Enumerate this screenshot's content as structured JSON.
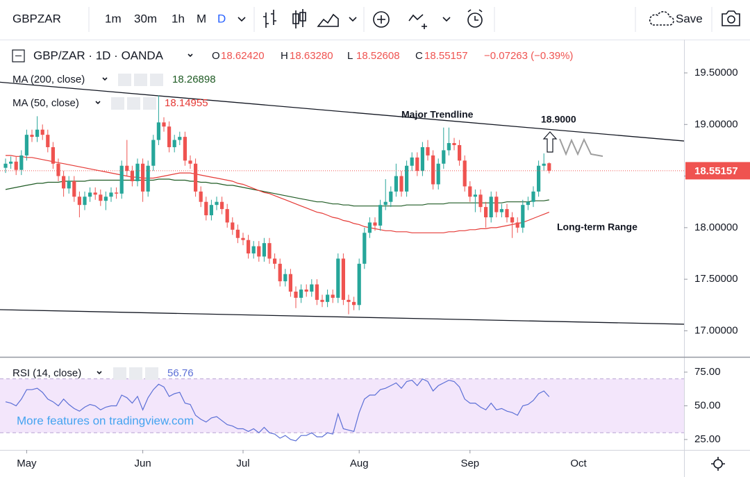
{
  "toolbar": {
    "symbol": "GBPZAR",
    "intervals": [
      "1m",
      "30m",
      "1h",
      "M",
      "D"
    ],
    "save": "Save"
  },
  "chart_data": {
    "type": "candlestick",
    "title": "GBP/ZAR · 1D · OANDA",
    "header_values": [
      {
        "label": "O",
        "text": "18.62420"
      },
      {
        "label": "H",
        "text": "18.63280"
      },
      {
        "label": "L",
        "text": "18.52608"
      },
      {
        "label": "C",
        "text": "18.55157"
      }
    ],
    "change": "−0.07263 (−0.39%)",
    "up_color": "#26a69a",
    "down_color": "#ef5350",
    "categories": [
      null,
      null,
      null,
      null,
      "May",
      null,
      null,
      null,
      null,
      null,
      null,
      null,
      null,
      null,
      null,
      null,
      null,
      null,
      null,
      null,
      null,
      null,
      null,
      null,
      null,
      null,
      "Jun",
      null,
      null,
      null,
      null,
      null,
      null,
      null,
      null,
      null,
      null,
      null,
      null,
      null,
      null,
      null,
      null,
      null,
      null,
      "Jul",
      null,
      null,
      null,
      null,
      null,
      null,
      null,
      null,
      null,
      null,
      null,
      null,
      null,
      null,
      null,
      null,
      null,
      null,
      null,
      null,
      null,
      "Aug",
      null,
      null,
      null,
      null,
      null,
      null,
      null,
      null,
      null,
      null,
      null,
      null,
      null,
      null,
      null,
      null,
      null,
      null,
      null,
      null,
      "Sep",
      null,
      null,
      null,
      null,
      null,
      null,
      null,
      null,
      null,
      null,
      null,
      null,
      null,
      null,
      null
    ],
    "extra_category": "Oct",
    "candles": [
      [
        18.58,
        18.67,
        18.53,
        18.62
      ],
      [
        18.62,
        18.69,
        18.57,
        18.64
      ],
      [
        18.64,
        18.69,
        18.51,
        18.56
      ],
      [
        18.56,
        18.75,
        18.51,
        18.7
      ],
      [
        18.7,
        18.95,
        18.65,
        18.9
      ],
      [
        18.9,
        18.95,
        18.83,
        18.88
      ],
      [
        18.88,
        19.08,
        18.83,
        18.95
      ],
      [
        18.95,
        19.0,
        18.85,
        18.9
      ],
      [
        18.9,
        18.95,
        18.73,
        18.78
      ],
      [
        18.78,
        18.83,
        18.57,
        18.62
      ],
      [
        18.62,
        18.67,
        18.45,
        18.5
      ],
      [
        18.5,
        18.55,
        18.3,
        18.38
      ],
      [
        18.38,
        18.5,
        18.33,
        18.45
      ],
      [
        18.45,
        18.5,
        18.25,
        18.3
      ],
      [
        18.3,
        18.35,
        18.1,
        18.22
      ],
      [
        18.22,
        18.35,
        18.17,
        18.3
      ],
      [
        18.3,
        18.39,
        18.25,
        18.34
      ],
      [
        18.34,
        18.39,
        18.27,
        18.32
      ],
      [
        18.32,
        18.37,
        18.21,
        18.26
      ],
      [
        18.26,
        18.35,
        18.17,
        18.3
      ],
      [
        18.3,
        18.39,
        18.25,
        18.34
      ],
      [
        18.34,
        18.39,
        18.28,
        18.33
      ],
      [
        18.33,
        18.65,
        18.28,
        18.6
      ],
      [
        18.6,
        18.85,
        18.5,
        18.55
      ],
      [
        18.55,
        18.6,
        18.4,
        18.45
      ],
      [
        18.45,
        18.67,
        18.4,
        18.62
      ],
      [
        18.62,
        18.67,
        18.25,
        18.35
      ],
      [
        18.35,
        18.65,
        18.3,
        18.6
      ],
      [
        18.6,
        18.9,
        18.55,
        18.85
      ],
      [
        18.85,
        19.28,
        18.8,
        19.02
      ],
      [
        19.02,
        19.07,
        18.93,
        18.98
      ],
      [
        18.98,
        19.03,
        18.73,
        18.78
      ],
      [
        18.78,
        18.9,
        18.73,
        18.85
      ],
      [
        18.85,
        18.93,
        18.8,
        18.88
      ],
      [
        18.88,
        18.93,
        18.6,
        18.65
      ],
      [
        18.65,
        18.7,
        18.57,
        18.62
      ],
      [
        18.62,
        18.67,
        18.3,
        18.35
      ],
      [
        18.35,
        18.4,
        18.2,
        18.25
      ],
      [
        18.25,
        18.3,
        18.07,
        18.12
      ],
      [
        18.12,
        18.27,
        18.07,
        18.22
      ],
      [
        18.22,
        18.3,
        18.17,
        18.25
      ],
      [
        18.25,
        18.3,
        18.13,
        18.18
      ],
      [
        18.18,
        18.23,
        18.0,
        18.05
      ],
      [
        18.05,
        18.1,
        17.93,
        17.98
      ],
      [
        17.98,
        18.03,
        17.85,
        17.9
      ],
      [
        17.9,
        17.95,
        17.83,
        17.88
      ],
      [
        17.88,
        17.93,
        17.7,
        17.75
      ],
      [
        17.75,
        17.87,
        17.7,
        17.82
      ],
      [
        17.82,
        17.87,
        17.67,
        17.72
      ],
      [
        17.72,
        17.9,
        17.67,
        17.85
      ],
      [
        17.85,
        17.9,
        17.65,
        17.7
      ],
      [
        17.7,
        17.75,
        17.6,
        17.65
      ],
      [
        17.65,
        17.7,
        17.43,
        17.48
      ],
      [
        17.48,
        17.6,
        17.43,
        17.55
      ],
      [
        17.55,
        17.6,
        17.33,
        17.38
      ],
      [
        17.38,
        17.43,
        17.22,
        17.32
      ],
      [
        17.32,
        17.45,
        17.27,
        17.4
      ],
      [
        17.4,
        17.45,
        17.33,
        17.38
      ],
      [
        17.38,
        17.5,
        17.33,
        17.45
      ],
      [
        17.45,
        17.5,
        17.25,
        17.3
      ],
      [
        17.3,
        17.35,
        17.23,
        17.28
      ],
      [
        17.28,
        17.4,
        17.23,
        17.35
      ],
      [
        17.35,
        17.4,
        17.27,
        17.32
      ],
      [
        17.32,
        17.75,
        17.27,
        17.7
      ],
      [
        17.7,
        17.75,
        17.25,
        17.3
      ],
      [
        17.3,
        17.35,
        17.16,
        17.28
      ],
      [
        17.28,
        17.33,
        17.2,
        17.25
      ],
      [
        17.25,
        17.7,
        17.2,
        17.65
      ],
      [
        17.65,
        18.0,
        17.6,
        17.95
      ],
      [
        17.95,
        18.1,
        17.9,
        18.05
      ],
      [
        18.05,
        18.1,
        17.97,
        18.02
      ],
      [
        18.02,
        18.27,
        17.97,
        18.22
      ],
      [
        18.22,
        18.47,
        18.17,
        18.25
      ],
      [
        18.25,
        18.4,
        18.2,
        18.35
      ],
      [
        18.35,
        18.62,
        18.3,
        18.5
      ],
      [
        18.5,
        18.55,
        18.3,
        18.35
      ],
      [
        18.35,
        18.65,
        18.3,
        18.6
      ],
      [
        18.6,
        18.73,
        18.55,
        18.68
      ],
      [
        18.68,
        18.73,
        18.5,
        18.55
      ],
      [
        18.55,
        18.83,
        18.5,
        18.78
      ],
      [
        18.78,
        18.85,
        18.65,
        18.7
      ],
      [
        18.7,
        18.75,
        18.37,
        18.42
      ],
      [
        18.42,
        18.67,
        18.37,
        18.62
      ],
      [
        18.62,
        18.97,
        18.57,
        18.75
      ],
      [
        18.75,
        18.97,
        18.7,
        18.82
      ],
      [
        18.82,
        18.87,
        18.75,
        18.8
      ],
      [
        18.8,
        18.85,
        18.6,
        18.65
      ],
      [
        18.65,
        18.7,
        18.35,
        18.4
      ],
      [
        18.4,
        18.45,
        18.25,
        18.3
      ],
      [
        18.3,
        18.37,
        18.15,
        18.32
      ],
      [
        18.32,
        18.37,
        18.15,
        18.2
      ],
      [
        18.2,
        18.25,
        18.0,
        18.1
      ],
      [
        18.1,
        18.35,
        18.05,
        18.3
      ],
      [
        18.3,
        18.35,
        18.1,
        18.15
      ],
      [
        18.15,
        18.23,
        18.1,
        18.18
      ],
      [
        18.18,
        18.23,
        18.05,
        18.1
      ],
      [
        18.1,
        18.15,
        17.9,
        18.05
      ],
      [
        18.05,
        18.1,
        17.95,
        18.0
      ],
      [
        18.0,
        18.27,
        17.95,
        18.22
      ],
      [
        18.22,
        18.3,
        18.17,
        18.25
      ],
      [
        18.25,
        18.4,
        18.2,
        18.35
      ],
      [
        18.35,
        18.65,
        18.3,
        18.6
      ],
      [
        18.6,
        18.72,
        18.55,
        18.62
      ],
      [
        18.6242,
        18.6328,
        18.52608,
        18.55157
      ]
    ],
    "series": [
      {
        "name": "MA (200, close)",
        "color": "#1e5a23",
        "values": [
          18.37,
          18.38,
          18.39,
          18.4,
          18.41,
          18.42,
          18.43,
          18.43,
          18.44,
          18.44,
          18.44,
          18.45,
          18.45,
          18.45,
          18.45,
          18.45,
          18.46,
          18.46,
          18.46,
          18.46,
          18.46,
          18.46,
          18.46,
          18.46,
          18.46,
          18.46,
          18.46,
          18.46,
          18.46,
          18.47,
          18.47,
          18.47,
          18.46,
          18.46,
          18.46,
          18.45,
          18.45,
          18.44,
          18.44,
          18.43,
          18.43,
          18.42,
          18.41,
          18.41,
          18.4,
          18.39,
          18.38,
          18.37,
          18.36,
          18.35,
          18.34,
          18.33,
          18.32,
          18.31,
          18.3,
          18.29,
          18.28,
          18.27,
          18.26,
          18.25,
          18.25,
          18.24,
          18.23,
          18.23,
          18.22,
          18.22,
          18.21,
          18.21,
          18.21,
          18.21,
          18.21,
          18.21,
          18.21,
          18.21,
          18.21,
          18.21,
          18.22,
          18.22,
          18.22,
          18.22,
          18.23,
          18.23,
          18.23,
          18.23,
          18.24,
          18.24,
          18.24,
          18.24,
          18.24,
          18.24,
          18.24,
          18.24,
          18.24,
          18.24,
          18.24,
          18.25,
          18.25,
          18.25,
          18.25,
          18.25,
          18.26,
          18.26,
          18.26,
          18.26898
        ]
      },
      {
        "name": "MA (50, close)",
        "color": "#e53935",
        "values": [
          18.7,
          18.7,
          18.69,
          18.69,
          18.68,
          18.68,
          18.67,
          18.66,
          18.65,
          18.64,
          18.63,
          18.62,
          18.61,
          18.6,
          18.59,
          18.58,
          18.57,
          18.56,
          18.55,
          18.54,
          18.53,
          18.52,
          18.51,
          18.5,
          18.49,
          18.49,
          18.48,
          18.48,
          18.48,
          18.49,
          18.5,
          18.51,
          18.52,
          18.53,
          18.53,
          18.53,
          18.52,
          18.51,
          18.5,
          18.49,
          18.48,
          18.47,
          18.46,
          18.45,
          18.43,
          18.42,
          18.4,
          18.38,
          18.36,
          18.34,
          18.33,
          18.31,
          18.29,
          18.27,
          18.25,
          18.23,
          18.21,
          18.19,
          18.17,
          18.15,
          18.14,
          18.12,
          18.1,
          18.09,
          18.07,
          18.06,
          18.04,
          18.03,
          18.01,
          18.0,
          17.99,
          17.98,
          17.97,
          17.97,
          17.96,
          17.96,
          17.96,
          17.95,
          17.95,
          17.95,
          17.95,
          17.95,
          17.95,
          17.95,
          17.96,
          17.96,
          17.97,
          17.97,
          17.98,
          17.98,
          17.99,
          17.99,
          18.0,
          18.0,
          18.01,
          18.02,
          18.03,
          18.04,
          18.05,
          18.07,
          18.09,
          18.11,
          18.13,
          18.14955
        ]
      }
    ],
    "trendlines": [
      {
        "values": [
          19.41,
          18.84
        ]
      },
      {
        "values": [
          17.205,
          17.064
        ]
      }
    ],
    "ylim": [
      16.754,
      19.823
    ],
    "yticks": [
      {
        "value": 19.5,
        "label": "19.50000"
      },
      {
        "value": 19,
        "label": "19.00000"
      },
      {
        "value": 18.5,
        "label": "18.50000"
      },
      {
        "value": 18,
        "label": "18.00000"
      },
      {
        "value": 17.5,
        "label": "17.50000"
      },
      {
        "value": 17,
        "label": "17.00000"
      }
    ],
    "annotations": [
      "Major Trendline",
      "18.9000",
      "Long-term Range"
    ],
    "rsi": {
      "name": "RSI (14, close)",
      "color": "#5b6fd6",
      "band": [
        30,
        70
      ],
      "values": [
        53,
        52,
        50,
        55,
        62,
        62,
        63,
        60,
        55,
        53,
        50,
        55,
        51,
        48,
        46,
        49,
        51,
        50,
        47,
        49,
        50,
        50,
        58,
        56,
        52,
        57,
        47,
        56,
        62,
        66,
        64,
        57,
        59,
        60,
        52,
        51,
        43,
        40,
        38,
        41,
        42,
        39,
        36,
        35,
        33,
        33,
        31,
        33,
        30,
        34,
        30,
        29,
        26,
        28,
        25,
        24,
        28,
        28,
        30,
        27,
        27,
        30,
        29,
        44,
        33,
        32,
        31,
        45,
        55,
        58,
        58,
        62,
        63,
        65,
        67,
        63,
        68,
        69,
        65,
        70,
        68,
        61,
        65,
        67,
        69,
        68,
        64,
        55,
        52,
        52,
        49,
        47,
        52,
        47,
        48,
        46,
        45,
        43,
        50,
        51,
        54,
        59,
        61,
        56.76
      ],
      "ylim": [
        17.27,
        85.8
      ],
      "yticks": [
        {
          "value": 75,
          "label": "75.00"
        },
        {
          "value": 50,
          "label": "50.00"
        },
        {
          "value": 25,
          "label": "25.00"
        }
      ]
    },
    "watermark": "More features on tradingview.com"
  }
}
